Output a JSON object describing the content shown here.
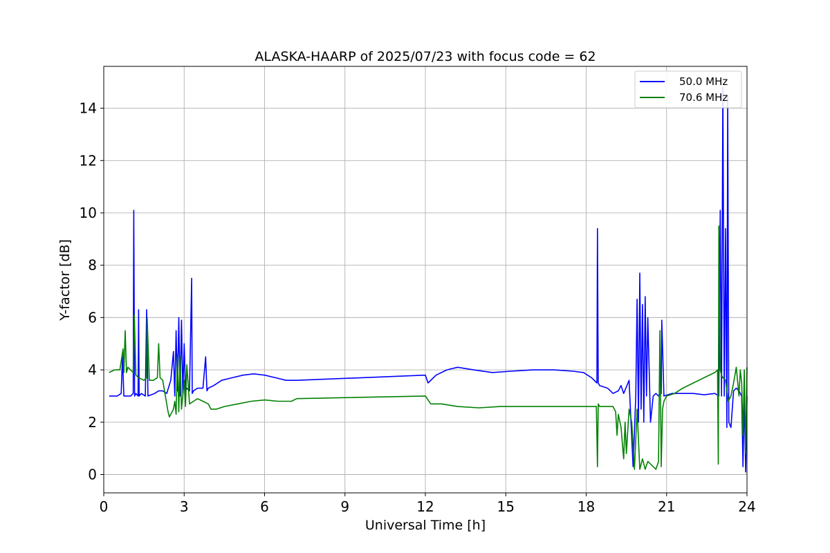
{
  "chart_data": {
    "type": "line",
    "title": "ALASKA-HAARP of 2025/07/23 with focus code = 62",
    "xlabel": "Universal Time [h]",
    "ylabel": "Y-factor [dB]",
    "xlim": [
      0,
      24
    ],
    "ylim": [
      -0.7,
      15.6
    ],
    "xticks": [
      0,
      3,
      6,
      9,
      12,
      15,
      18,
      21,
      24
    ],
    "yticks": [
      0,
      2,
      4,
      6,
      8,
      10,
      12,
      14
    ],
    "grid": true,
    "legend_position": "top-right",
    "series": [
      {
        "name": "50.0 MHz",
        "color": "#0000ff",
        "x": [
          0.2,
          0.5,
          0.65,
          0.7,
          0.75,
          1.0,
          1.1,
          1.12,
          1.15,
          1.2,
          1.28,
          1.3,
          1.32,
          1.4,
          1.55,
          1.6,
          1.65,
          1.9,
          2.05,
          2.2,
          2.35,
          2.5,
          2.6,
          2.65,
          2.7,
          2.75,
          2.8,
          2.85,
          2.9,
          2.95,
          3.0,
          3.05,
          3.1,
          3.2,
          3.28,
          3.3,
          3.35,
          3.5,
          3.7,
          3.8,
          3.85,
          3.9,
          4.1,
          4.4,
          4.8,
          5.2,
          5.6,
          6.0,
          6.4,
          6.8,
          7.2,
          12.0,
          12.1,
          12.4,
          12.8,
          13.2,
          13.8,
          14.5,
          15.2,
          16.0,
          16.8,
          17.5,
          17.9,
          18.2,
          18.4,
          18.42,
          18.45,
          18.5,
          18.8,
          19.0,
          19.2,
          19.3,
          19.4,
          19.6,
          19.75,
          19.85,
          19.9,
          19.95,
          20.0,
          20.05,
          20.1,
          20.15,
          20.2,
          20.25,
          20.3,
          20.4,
          20.5,
          20.6,
          20.7,
          20.8,
          20.82,
          20.9,
          21.2,
          21.6,
          22.0,
          22.4,
          22.8,
          22.95,
          23.0,
          23.05,
          23.1,
          23.15,
          23.2,
          23.25,
          23.28,
          23.32,
          23.4,
          23.5,
          23.6,
          23.7,
          23.8,
          23.85,
          23.9,
          23.95,
          24.0
        ],
        "y": [
          3.0,
          3.0,
          3.1,
          4.5,
          3.0,
          3.0,
          3.1,
          10.1,
          3.0,
          3.1,
          3.0,
          6.3,
          3.0,
          3.1,
          3.0,
          6.3,
          3.0,
          3.1,
          3.2,
          3.2,
          3.1,
          3.6,
          4.7,
          3.0,
          5.5,
          3.2,
          6.0,
          3.0,
          5.9,
          3.1,
          5.0,
          3.2,
          3.3,
          3.2,
          7.5,
          3.1,
          3.2,
          3.3,
          3.3,
          4.5,
          3.2,
          3.3,
          3.4,
          3.6,
          3.7,
          3.8,
          3.85,
          3.8,
          3.7,
          3.6,
          3.6,
          3.8,
          3.5,
          3.8,
          4.0,
          4.1,
          4.0,
          3.9,
          3.95,
          4.0,
          4.0,
          3.95,
          3.9,
          3.7,
          3.5,
          9.4,
          3.5,
          3.4,
          3.3,
          3.1,
          3.2,
          3.4,
          3.1,
          3.6,
          0.3,
          3.0,
          6.7,
          2.0,
          7.7,
          2.5,
          6.5,
          2.0,
          6.8,
          3.0,
          6.0,
          2.0,
          3.0,
          3.1,
          3.0,
          3.1,
          5.9,
          3.0,
          3.1,
          3.1,
          3.1,
          3.05,
          3.1,
          3.0,
          10.1,
          3.0,
          14.8,
          3.0,
          9.4,
          1.8,
          14.5,
          2.0,
          1.8,
          3.2,
          3.3,
          3.2,
          3.0,
          0.3,
          3.0,
          0.1,
          3.0
        ]
      },
      {
        "name": "70.6 MHz",
        "color": "#008000",
        "x": [
          0.2,
          0.4,
          0.6,
          0.72,
          0.75,
          0.8,
          0.85,
          0.9,
          1.1,
          1.14,
          1.2,
          1.3,
          1.5,
          1.6,
          1.62,
          1.7,
          1.85,
          2.0,
          2.05,
          2.1,
          2.2,
          2.3,
          2.4,
          2.45,
          2.5,
          2.6,
          2.65,
          2.7,
          2.75,
          2.8,
          2.85,
          2.9,
          3.0,
          3.05,
          3.1,
          3.2,
          3.35,
          3.5,
          3.7,
          3.9,
          4.0,
          4.2,
          4.5,
          5.0,
          5.5,
          6.0,
          6.5,
          7.0,
          7.2,
          12.0,
          12.2,
          12.6,
          13.2,
          14.0,
          14.8,
          15.6,
          16.4,
          17.2,
          18.0,
          18.3,
          18.38,
          18.42,
          18.45,
          18.5,
          18.8,
          19.0,
          19.1,
          19.15,
          19.2,
          19.3,
          19.4,
          19.45,
          19.5,
          19.6,
          19.7,
          19.8,
          19.9,
          20.0,
          20.1,
          20.2,
          20.3,
          20.5,
          20.6,
          20.7,
          20.75,
          20.8,
          20.85,
          20.9,
          21.0,
          21.3,
          21.6,
          22.0,
          22.4,
          22.8,
          22.9,
          22.93,
          22.95,
          23.0,
          23.05,
          23.1,
          23.2,
          23.3,
          23.4,
          23.5,
          23.6,
          23.7,
          23.75,
          23.8,
          23.85,
          23.9,
          23.95,
          24.0
        ],
        "y": [
          3.9,
          4.0,
          4.0,
          4.8,
          3.9,
          5.5,
          3.9,
          4.1,
          3.9,
          6.1,
          3.8,
          3.7,
          3.6,
          3.7,
          6.0,
          3.6,
          3.6,
          3.7,
          5.0,
          3.7,
          3.6,
          3.0,
          2.4,
          2.2,
          2.3,
          2.5,
          2.8,
          2.3,
          4.6,
          2.4,
          4.5,
          2.5,
          3.6,
          2.6,
          4.2,
          2.7,
          2.8,
          2.9,
          2.8,
          2.7,
          2.5,
          2.5,
          2.6,
          2.7,
          2.8,
          2.85,
          2.8,
          2.8,
          2.9,
          3.0,
          2.7,
          2.7,
          2.6,
          2.55,
          2.6,
          2.6,
          2.6,
          2.6,
          2.6,
          2.6,
          2.6,
          0.3,
          2.7,
          2.6,
          2.6,
          2.6,
          2.4,
          1.5,
          2.3,
          1.8,
          0.6,
          2.0,
          0.8,
          2.5,
          2.0,
          0.2,
          2.5,
          0.2,
          0.6,
          0.2,
          0.5,
          0.3,
          0.2,
          0.5,
          5.5,
          0.3,
          2.5,
          2.8,
          3.0,
          3.1,
          3.3,
          3.5,
          3.7,
          3.9,
          4.0,
          0.4,
          9.5,
          4.0,
          3.8,
          3.7,
          3.6,
          2.8,
          3.0,
          3.5,
          4.1,
          3.0,
          4.0,
          3.5,
          1.5,
          4.0,
          0.8,
          4.1
        ]
      }
    ]
  }
}
